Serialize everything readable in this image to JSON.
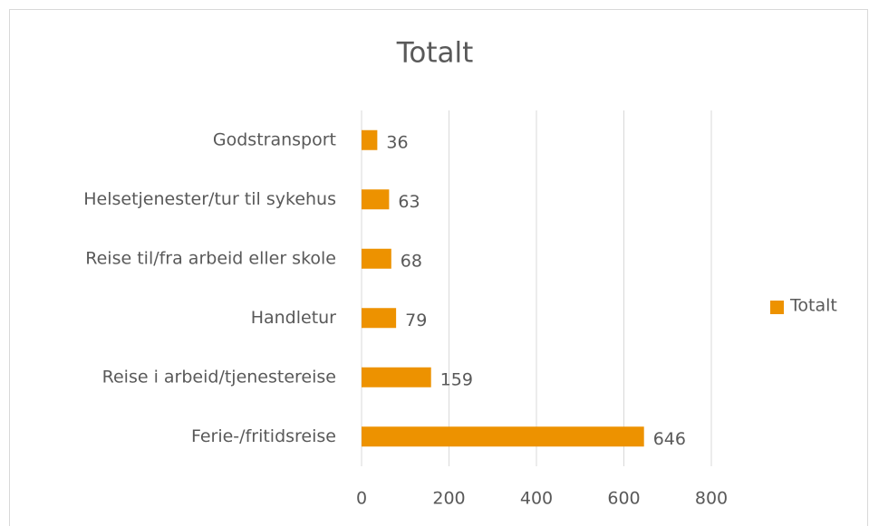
{
  "chart_data": {
    "type": "bar",
    "orientation": "horizontal",
    "title": "Totalt",
    "categories": [
      "Godstransport",
      "Helsetjenester/tur til sykehus",
      "Reise til/fra arbeid eller skole",
      "Handletur",
      "Reise i arbeid/tjenestereise",
      "Ferie-/fritidsreise"
    ],
    "series": [
      {
        "name": "Totalt",
        "color": "#ed9200",
        "values": [
          36,
          63,
          68,
          79,
          159,
          646
        ]
      }
    ],
    "xlim": [
      0,
      800
    ],
    "xticks": [
      0,
      200,
      400,
      600,
      800
    ],
    "grid": true,
    "legend": "right"
  }
}
